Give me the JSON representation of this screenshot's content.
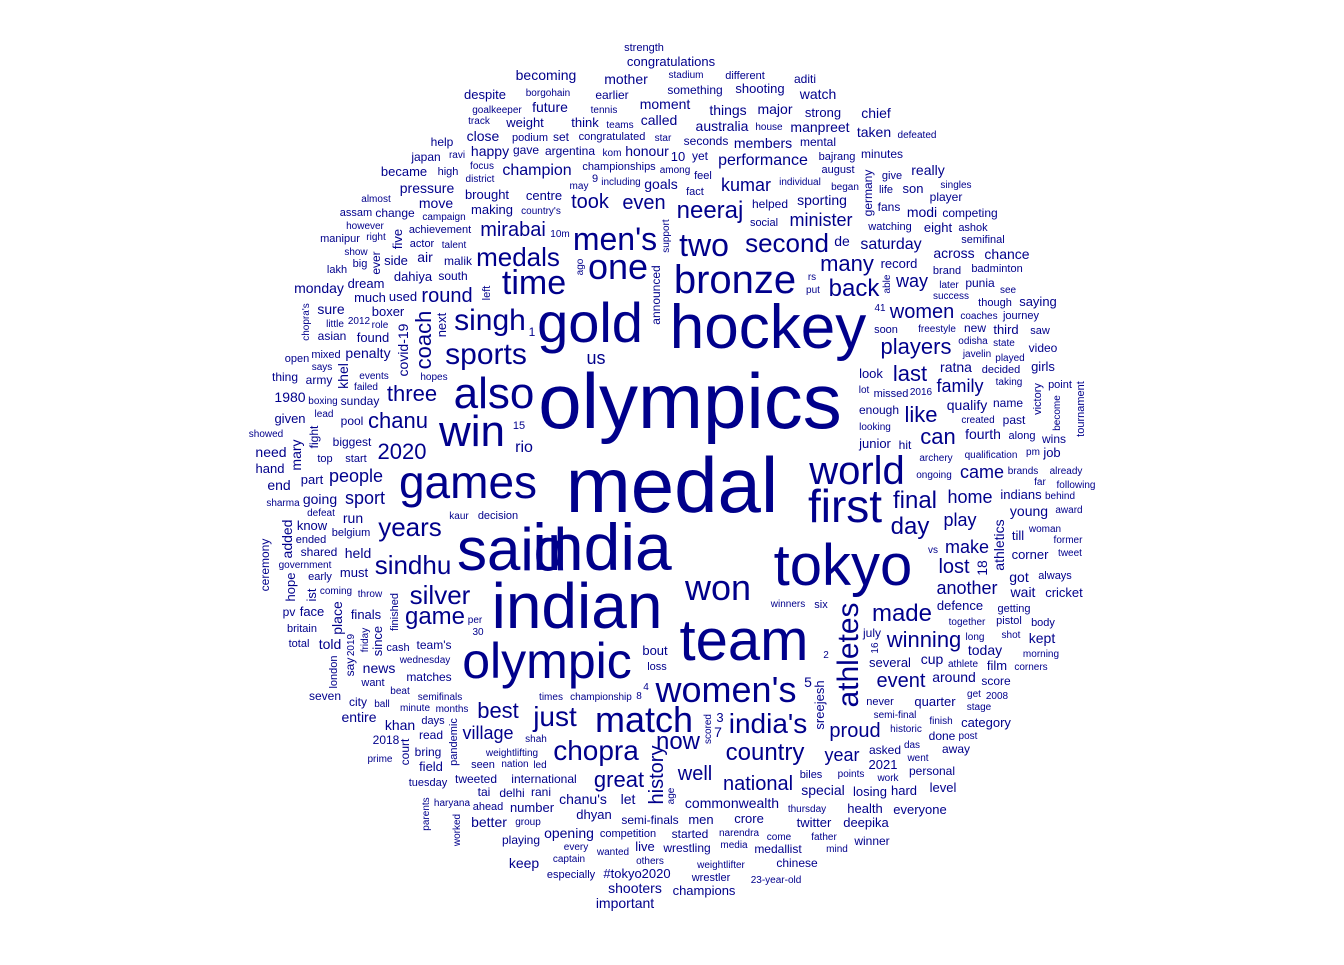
{
  "chart_data": {
    "type": "wordcloud",
    "title": "",
    "color": "#00008B",
    "words": [
      {
        "text": "olympics",
        "weight": 78
      },
      {
        "text": "medal",
        "weight": 78
      },
      {
        "text": "india",
        "weight": 66
      },
      {
        "text": "indian",
        "weight": 64
      },
      {
        "text": "hockey",
        "weight": 62
      },
      {
        "text": "said",
        "weight": 60
      },
      {
        "text": "team",
        "weight": 58
      },
      {
        "text": "tokyo",
        "weight": 58
      },
      {
        "text": "gold",
        "weight": 56
      },
      {
        "text": "olympic",
        "weight": 50
      },
      {
        "text": "games",
        "weight": 46
      },
      {
        "text": "first",
        "weight": 46
      },
      {
        "text": "also",
        "weight": 44
      },
      {
        "text": "win",
        "weight": 44
      },
      {
        "text": "bronze",
        "weight": 40
      },
      {
        "text": "world",
        "weight": 40
      },
      {
        "text": "match",
        "weight": 36
      },
      {
        "text": "women's",
        "weight": 36
      },
      {
        "text": "won",
        "weight": 36
      },
      {
        "text": "one",
        "weight": 36
      },
      {
        "text": "time",
        "weight": 34
      },
      {
        "text": "two",
        "weight": 32
      },
      {
        "text": "men's",
        "weight": 32
      },
      {
        "text": "athletes",
        "weight": 30
      },
      {
        "text": "singh",
        "weight": 30
      },
      {
        "text": "sports",
        "weight": 30
      },
      {
        "text": "india's",
        "weight": 28
      },
      {
        "text": "just",
        "weight": 28
      },
      {
        "text": "chopra",
        "weight": 28
      },
      {
        "text": "years",
        "weight": 26
      },
      {
        "text": "sindhu",
        "weight": 26
      },
      {
        "text": "silver",
        "weight": 26
      },
      {
        "text": "medals",
        "weight": 26
      },
      {
        "text": "second",
        "weight": 26
      },
      {
        "text": "neeraj",
        "weight": 24
      },
      {
        "text": "country",
        "weight": 24
      },
      {
        "text": "made",
        "weight": 24
      },
      {
        "text": "back",
        "weight": 24
      },
      {
        "text": "game",
        "weight": 24
      },
      {
        "text": "now",
        "weight": 24
      },
      {
        "text": "final",
        "weight": 24
      },
      {
        "text": "day",
        "weight": 24
      },
      {
        "text": "winning",
        "weight": 22
      },
      {
        "text": "like",
        "weight": 22
      },
      {
        "text": "last",
        "weight": 22
      },
      {
        "text": "players",
        "weight": 22
      },
      {
        "text": "chanu",
        "weight": 22
      },
      {
        "text": "best",
        "weight": 22
      },
      {
        "text": "can",
        "weight": 22
      },
      {
        "text": "great",
        "weight": 22
      },
      {
        "text": "many",
        "weight": 22
      },
      {
        "text": "2020",
        "weight": 22
      },
      {
        "text": "three",
        "weight": 22
      },
      {
        "text": "coach",
        "weight": 22
      },
      {
        "text": "women",
        "weight": 20
      },
      {
        "text": "national",
        "weight": 20
      },
      {
        "text": "proud",
        "weight": 20
      },
      {
        "text": "event",
        "weight": 20
      },
      {
        "text": "year",
        "weight": 18
      },
      {
        "text": "even",
        "weight": 20
      },
      {
        "text": "mirabai",
        "weight": 20
      },
      {
        "text": "took",
        "weight": 20
      },
      {
        "text": "history",
        "weight": 20
      },
      {
        "text": "well",
        "weight": 20
      },
      {
        "text": "people",
        "weight": 18
      },
      {
        "text": "round",
        "weight": 20
      },
      {
        "text": "lost",
        "weight": 20
      },
      {
        "text": "kumar",
        "weight": 18
      },
      {
        "text": "minister",
        "weight": 18
      },
      {
        "text": "family",
        "weight": 18
      },
      {
        "text": "home",
        "weight": 18
      },
      {
        "text": "came",
        "weight": 18
      },
      {
        "text": "village",
        "weight": 18
      },
      {
        "text": "way",
        "weight": 18
      },
      {
        "text": "saturday",
        "weight": 16
      },
      {
        "text": "rio",
        "weight": 16
      },
      {
        "text": "sport",
        "weight": 18
      },
      {
        "text": "play",
        "weight": 18
      },
      {
        "text": "make",
        "weight": 18
      },
      {
        "text": "another",
        "weight": 18
      },
      {
        "text": "performance",
        "weight": 16
      },
      {
        "text": "champion",
        "weight": 16
      },
      {
        "text": "us",
        "weight": 18
      },
      {
        "text": "say",
        "weight": 12
      }
    ],
    "small_words": [
      "winners",
      "looking",
      "decision",
      "enough",
      "junior",
      "covid-19",
      "championship",
      "archery",
      "missed",
      "helped",
      "several",
      "goals",
      "ongoing",
      "country's",
      "soon",
      "team's",
      "sreejesh",
      "qualify",
      "kaur",
      "including",
      "championships",
      "south",
      "centre",
      "ratna",
      "wednesday",
      "among",
      "never",
      "announced",
      "bout",
      "sporting",
      "qualification",
      "freestyle",
      "fact",
      "malik",
      "look",
      "fourth",
      "weightlifting",
      "individual",
      "finished",
      "matches",
      "defence",
      "honour",
      "talent",
      "created",
      "loss",
      "sunday",
      "record",
      "penalty",
      "events",
      "ago",
      "social",
      "international",
      "making",
      "commonwealth",
      "months",
      "shah",
      "belgium",
      "yet",
      "dahiya",
      "cup",
      "scored",
      "semifinals",
      "watching",
      "biggest",
      "used",
      "held",
      "throw",
      "semi-final",
      "achievement",
      "seconds",
      "found",
      "athletics",
      "nation",
      "put",
      "start",
      "argentina",
      "brought",
      "chanu's",
      "together",
      "odisha",
      "cash",
      "hit",
      "since",
      "run",
      "javelin",
      "times",
      "congratulated",
      "pool",
      "finals",
      "air",
      "later",
      "failed",
      "six",
      "germany",
      "must",
      "members",
      "hopes",
      "began",
      "biles",
      "july",
      "boxer",
      "around",
      "lot",
      "campaign",
      "pandemic",
      "semi-finals",
      "quarter",
      "australia",
      "may",
      "per",
      "brand",
      "name",
      "indians",
      "special",
      "success",
      "support",
      "days",
      "new",
      "much",
      "let",
      "historic",
      "coaches",
      "decided",
      "fans",
      "men",
      "de",
      "16",
      "4",
      "august",
      "past",
      "side",
      "called",
      "points",
      "athlete",
      "seen",
      "rani",
      "dhyan",
      "khel",
      "long",
      "brands",
      "actor",
      "asked",
      "crore",
      "news",
      "role",
      "defeat",
      "top",
      "started",
      "next",
      "across",
      "taking",
      "coming",
      "competition",
      "gave",
      "number",
      "today",
      "2016",
      "minute",
      "along",
      "fight",
      "think",
      "move",
      "beat",
      "2012",
      "feel",
      "mental",
      "dream",
      "going",
      "30",
      "played",
      "left",
      "shared",
      "eight",
      "young",
      "boxing",
      "district",
      "bajrang",
      "read",
      "2021",
      "got",
      "thursday",
      "2019",
      "life",
      "set",
      "till",
      "moment",
      "lead",
      "teams",
      "though",
      "delhi",
      "part",
      "modi",
      "friday",
      "narendra",
      "podium",
      "tweeted",
      "know",
      "things",
      "house",
      "10m",
      "mixed",
      "punia",
      "corner",
      "place",
      "state",
      "star",
      "early",
      "army",
      "third",
      "khan",
      "finish",
      "pm",
      "getting",
      "asian",
      "five",
      "wait",
      "tennis",
      "focus",
      "pistol",
      "wrestling",
      "twitter",
      "opening",
      "das",
      "kom",
      "want",
      "ever",
      "losing",
      "pressure",
      "media",
      "says",
      "give",
      "bring",
      "film",
      "manpreet",
      "government",
      "ball",
      "victory",
      "change",
      "weight",
      "major",
      "work",
      "woman",
      "ended",
      "done",
      "son",
      "happy",
      "little",
      "age",
      "journey",
      "earlier",
      "field",
      "told",
      "rs",
      "far",
      "15",
      "tai",
      "live",
      "7",
      "able",
      "shot",
      "ahead",
      "score",
      "given",
      "future",
      "went",
      "group",
      "high",
      "something",
      "girls",
      "mary",
      "every",
      "get",
      "badminton",
      "wins",
      "health",
      "sure",
      "vs",
      "come",
      "big",
      "medallist",
      "ist",
      "close",
      "others",
      "weightlifter",
      "semifinal",
      "minutes",
      "job",
      "1980",
      "wanted",
      "sharma",
      "ashok",
      "court",
      "shooting",
      "mother",
      "see",
      "already",
      "tuesday",
      "city",
      "strong",
      "better",
      "ravi",
      "right",
      "london",
      "competing",
      "#tokyo2020",
      "entire",
      "father",
      "stadium",
      "lakh",
      "away",
      "face",
      "really",
      "show",
      "chopra's",
      "body",
      "video",
      "hard",
      "end",
      "stage",
      "captain",
      "point",
      "personal",
      "deepika",
      "taken",
      "become",
      "borgohain",
      "britain",
      "player",
      "became",
      "monday",
      "2008",
      "behind",
      "always",
      "playing",
      "category",
      "added",
      "however",
      "haryana",
      "open",
      "thing",
      "saying",
      "kept",
      "award",
      "former",
      "wrestler",
      "2018",
      "hope",
      "chance",
      "goalkeeper",
      "almost",
      "saw",
      "chinese",
      "congratulations",
      "chief",
      "tweet",
      "post",
      "total",
      "ceremony",
      "hand",
      "watch",
      "track",
      "singles",
      "different",
      "japan",
      "cricket",
      "becoming",
      "following",
      "morning",
      "tournament",
      "aditi",
      "level",
      "need",
      "41",
      "corners",
      "especially",
      "winner",
      "champions",
      "keep",
      "prime",
      "worked",
      "assam",
      "help",
      "everyone",
      "shooters",
      "showed",
      "23-year-old",
      "manipur",
      "seven",
      "despite",
      "important",
      "parents",
      "mind",
      "strength",
      "1",
      "3",
      "5",
      "2",
      "8",
      "9",
      "pv",
      "10",
      "18",
      "defeated",
      "led"
    ]
  }
}
